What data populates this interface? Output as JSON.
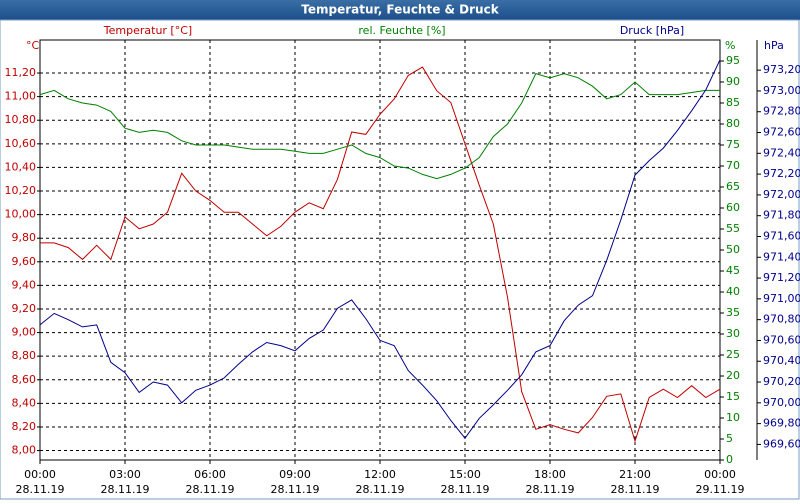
{
  "chart_data": {
    "type": "line",
    "title": "Temperatur, Feuchte & Druck",
    "y_label": "°C",
    "y2_label": "%",
    "y3_label": "hPa",
    "x": [
      0,
      0.5,
      1,
      1.5,
      2,
      2.5,
      3,
      3.5,
      4,
      4.5,
      5,
      5.5,
      6,
      6.5,
      7,
      7.5,
      8,
      8.5,
      9,
      9.5,
      10,
      10.5,
      11,
      11.5,
      12,
      12.5,
      13,
      13.5,
      14,
      14.5,
      15,
      15.5,
      16,
      16.5,
      17,
      17.5,
      18,
      18.5,
      19,
      19.5,
      20,
      20.5,
      21,
      21.5,
      22,
      22.5,
      23,
      23.5,
      24
    ],
    "xlim": [
      0,
      24
    ],
    "xticks": [
      {
        "value": 0,
        "label": "00:00"
      },
      {
        "value": 3,
        "label": "03:00"
      },
      {
        "value": 6,
        "label": "06:00"
      },
      {
        "value": 9,
        "label": "09:00"
      },
      {
        "value": 12,
        "label": "12:00"
      },
      {
        "value": 15,
        "label": "15:00"
      },
      {
        "value": 18,
        "label": "18:00"
      },
      {
        "value": 21,
        "label": "21:00"
      },
      {
        "value": 24,
        "label": "00:00"
      }
    ],
    "xtick_dates": [
      "28.11.19",
      "28.11.19",
      "28.11.19",
      "28.11.19",
      "28.11.19",
      "28.11.19",
      "28.11.19",
      "28.11.19",
      "29.11.19"
    ],
    "ylim": [
      7.92,
      11.48
    ],
    "yticks": [
      {
        "value": 8,
        "label": "8,00"
      },
      {
        "value": 8.2,
        "label": "8,20"
      },
      {
        "value": 8.4,
        "label": "8,40"
      },
      {
        "value": 8.6,
        "label": "8,60"
      },
      {
        "value": 8.8,
        "label": "8,80"
      },
      {
        "value": 9,
        "label": "9,00"
      },
      {
        "value": 9.2,
        "label": "9,20"
      },
      {
        "value": 9.4,
        "label": "9,40"
      },
      {
        "value": 9.6,
        "label": "9,60"
      },
      {
        "value": 9.8,
        "label": "9,80"
      },
      {
        "value": 10,
        "label": "10,00"
      },
      {
        "value": 10.2,
        "label": "10,20"
      },
      {
        "value": 10.4,
        "label": "10,40"
      },
      {
        "value": 10.6,
        "label": "10,60"
      },
      {
        "value": 10.8,
        "label": "10,80"
      },
      {
        "value": 11,
        "label": "11,00"
      },
      {
        "value": 11.2,
        "label": "11,20"
      }
    ],
    "y2lim": [
      0,
      100
    ],
    "y2ticks": [
      0,
      5,
      10,
      15,
      20,
      25,
      30,
      35,
      40,
      45,
      50,
      55,
      60,
      65,
      70,
      75,
      80,
      85,
      90,
      95
    ],
    "y3lim": [
      969.45,
      973.49
    ],
    "y3ticks": [
      {
        "value": 969.6,
        "label": "969,60"
      },
      {
        "value": 969.8,
        "label": "969,80"
      },
      {
        "value": 970,
        "label": "970,00"
      },
      {
        "value": 970.2,
        "label": "970,20"
      },
      {
        "value": 970.4,
        "label": "970,40"
      },
      {
        "value": 970.6,
        "label": "970,60"
      },
      {
        "value": 970.8,
        "label": "970,80"
      },
      {
        "value": 971,
        "label": "971,00"
      },
      {
        "value": 971.2,
        "label": "971,20"
      },
      {
        "value": 971.4,
        "label": "971,40"
      },
      {
        "value": 971.6,
        "label": "971,60"
      },
      {
        "value": 971.8,
        "label": "971,80"
      },
      {
        "value": 972,
        "label": "972,00"
      },
      {
        "value": 972.2,
        "label": "972,20"
      },
      {
        "value": 972.4,
        "label": "972,40"
      },
      {
        "value": 972.6,
        "label": "972,60"
      },
      {
        "value": 972.8,
        "label": "972,80"
      },
      {
        "value": 973,
        "label": "973,00"
      },
      {
        "value": 973.2,
        "label": "973,20"
      }
    ],
    "grid": true,
    "series": [
      {
        "name": "Temperatur [°C]",
        "color": "#c00000",
        "axis": "y",
        "values": [
          9.76,
          9.76,
          9.72,
          9.62,
          9.74,
          9.62,
          9.98,
          9.88,
          9.92,
          10.02,
          10.35,
          10.2,
          10.12,
          10.02,
          10.02,
          9.92,
          9.82,
          9.9,
          10.02,
          10.1,
          10.05,
          10.3,
          10.7,
          10.68,
          10.85,
          10.98,
          11.18,
          11.25,
          11.05,
          10.95,
          10.6,
          10.25,
          9.92,
          9.3,
          8.5,
          8.18,
          8.22,
          8.18,
          8.15,
          8.28,
          8.46,
          8.48,
          8.08,
          8.45,
          8.52,
          8.45,
          8.55,
          8.45,
          8.52
        ]
      },
      {
        "name": "rel. Feuchte [%]",
        "color": "#008000",
        "axis": "y2",
        "values": [
          87,
          88,
          86,
          85,
          84.5,
          83,
          79,
          78,
          78.5,
          78,
          76,
          75,
          75,
          75,
          74.5,
          74,
          74,
          74,
          73.5,
          73,
          73,
          74,
          75,
          73,
          72,
          70,
          69.5,
          68,
          67,
          68,
          69.5,
          72,
          77,
          80,
          85,
          92,
          91,
          92,
          91,
          89,
          86,
          87,
          90,
          87,
          87,
          87,
          87.5,
          88,
          88
        ]
      },
      {
        "name": "Druck [hPa]",
        "color": "#00008b",
        "axis": "y3",
        "values": [
          970.75,
          970.86,
          970.8,
          970.73,
          970.75,
          970.39,
          970.29,
          970.1,
          970.2,
          970.17,
          970,
          970.12,
          970.17,
          970.24,
          970.37,
          970.49,
          970.58,
          970.55,
          970.5,
          970.62,
          970.7,
          970.91,
          970.99,
          970.81,
          970.6,
          970.55,
          970.31,
          970.17,
          970.02,
          969.83,
          969.66,
          969.85,
          969.98,
          970.12,
          970.27,
          970.49,
          970.55,
          970.79,
          970.94,
          971.03,
          971.37,
          971.76,
          972.19,
          972.33,
          972.45,
          972.62,
          972.81,
          973.01,
          973.3
        ]
      }
    ]
  }
}
